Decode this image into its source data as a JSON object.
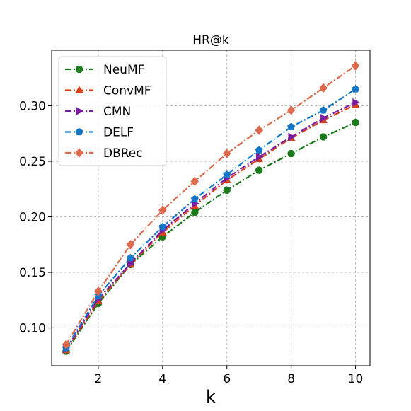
{
  "chart_data": {
    "type": "line",
    "title": "HR@k",
    "xlabel": "k",
    "ylabel": "",
    "x": [
      1,
      2,
      3,
      4,
      5,
      6,
      7,
      8,
      9,
      10
    ],
    "xlim": [
      0.55,
      10.45
    ],
    "ylim": [
      0.066,
      0.35
    ],
    "xticks": [
      2,
      4,
      6,
      8,
      10
    ],
    "xtick_labels": [
      "2",
      "4",
      "6",
      "8",
      "10"
    ],
    "yticks": [
      0.1,
      0.15,
      0.2,
      0.25,
      0.3
    ],
    "ytick_labels": [
      "0.10",
      "0.15",
      "0.20",
      "0.25",
      "0.30"
    ],
    "grid": true,
    "legend_position": "top-left",
    "series": [
      {
        "name": "NeuMF",
        "color": "#1a7a1a",
        "marker": "circle",
        "values": [
          0.079,
          0.122,
          0.157,
          0.182,
          0.204,
          0.224,
          0.242,
          0.257,
          0.272,
          0.285
        ]
      },
      {
        "name": "ConvMF",
        "color": "#d5421f",
        "marker": "triangle-up",
        "values": [
          0.08,
          0.124,
          0.157,
          0.186,
          0.21,
          0.233,
          0.252,
          0.271,
          0.287,
          0.301
        ]
      },
      {
        "name": "CMN",
        "color": "#7a1fa2",
        "marker": "triangle-right",
        "values": [
          0.081,
          0.126,
          0.158,
          0.188,
          0.212,
          0.235,
          0.254,
          0.272,
          0.289,
          0.303
        ]
      },
      {
        "name": "DELF",
        "color": "#1377c8",
        "marker": "pentagon",
        "values": [
          0.082,
          0.129,
          0.163,
          0.191,
          0.216,
          0.238,
          0.26,
          0.281,
          0.296,
          0.315
        ]
      },
      {
        "name": "DBRec",
        "color": "#dd6a4c",
        "marker": "diamond",
        "values": [
          0.085,
          0.133,
          0.175,
          0.206,
          0.232,
          0.257,
          0.278,
          0.296,
          0.316,
          0.336
        ]
      }
    ]
  }
}
